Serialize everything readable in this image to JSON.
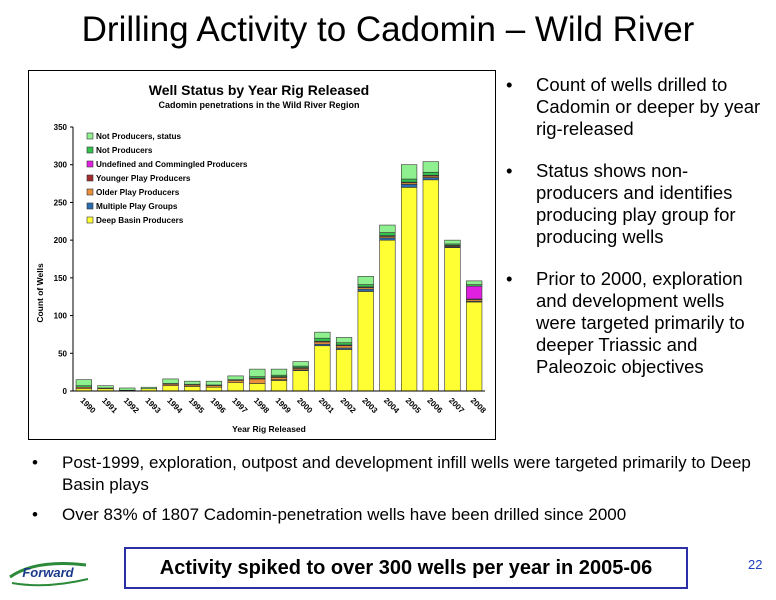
{
  "title": "Drilling Activity to Cadomin – Wild River",
  "chart_data": {
    "type": "bar",
    "stacked": true,
    "title": "Well Status by Year Rig Released",
    "subtitle": "Cadomin penetrations in the Wild River Region",
    "xlabel": "Year Rig Released",
    "ylabel": "Count of Wells",
    "ylim": [
      0,
      350
    ],
    "yticks": [
      "0",
      "50",
      "100",
      "150",
      "200",
      "250",
      "300",
      "350"
    ],
    "categories": [
      "1990",
      "1991",
      "1992",
      "1993",
      "1994",
      "1995",
      "1996",
      "1997",
      "1998",
      "1999",
      "2000",
      "2001",
      "2002",
      "2003",
      "2004",
      "2005",
      "2006",
      "2007",
      "2008"
    ],
    "legend_placement": "top-left",
    "series": [
      {
        "name": "Deep Basin Producers",
        "color": "#ffff33",
        "values": [
          3,
          3,
          1,
          3,
          7,
          6,
          5,
          11,
          10,
          14,
          27,
          60,
          55,
          132,
          200,
          270,
          280,
          190,
          118
        ]
      },
      {
        "name": "Multiple Play Groups",
        "color": "#2b6cb0",
        "values": [
          0,
          0,
          0,
          0,
          0,
          0,
          0,
          0,
          0,
          1,
          1,
          2,
          2,
          3,
          3,
          4,
          3,
          1,
          1
        ]
      },
      {
        "name": "Older Play Producers",
        "color": "#e8913a",
        "values": [
          2,
          1,
          0,
          0,
          2,
          2,
          2,
          3,
          6,
          3,
          2,
          3,
          3,
          2,
          2,
          2,
          2,
          1,
          2
        ]
      },
      {
        "name": "Younger Play Producers",
        "color": "#a32c2c",
        "values": [
          0,
          0,
          0,
          0,
          0,
          0,
          0,
          0,
          1,
          1,
          1,
          1,
          1,
          1,
          1,
          1,
          1,
          1,
          1
        ]
      },
      {
        "name": "Undefined and Commingled Producers",
        "color": "#e020e0",
        "values": [
          0,
          0,
          0,
          0,
          0,
          0,
          0,
          0,
          0,
          0,
          0,
          0,
          0,
          0,
          0,
          0,
          0,
          0,
          17
        ]
      },
      {
        "name": "Not Producers",
        "color": "#33c24d",
        "values": [
          2,
          0,
          0,
          0,
          1,
          1,
          1,
          1,
          2,
          2,
          2,
          4,
          3,
          3,
          4,
          4,
          4,
          2,
          2
        ]
      },
      {
        "name": "Not Producers,  status",
        "color": "#8ff08f",
        "values": [
          8,
          3,
          3,
          2,
          6,
          4,
          5,
          5,
          10,
          8,
          6,
          8,
          7,
          11,
          10,
          19,
          14,
          5,
          5
        ]
      }
    ]
  },
  "bullets_right": [
    "Count of wells drilled to Cadomin or deeper by year rig-released",
    "Status shows non-producers and identifies producing play group for producing wells",
    "Prior to 2000, exploration and development wells were targeted primarily to deeper Triassic and Paleozoic objectives"
  ],
  "bullets_bottom": [
    "Post-1999, exploration, outpost and development infill wells were targeted primarily to Deep Basin plays",
    "Over 83% of 1807 Cadomin-penetration wells have been drilled since 2000"
  ],
  "callout": "Activity spiked to over 300 wells per year in 2005-06",
  "page_number": "22",
  "logo": {
    "text": "Forward"
  }
}
